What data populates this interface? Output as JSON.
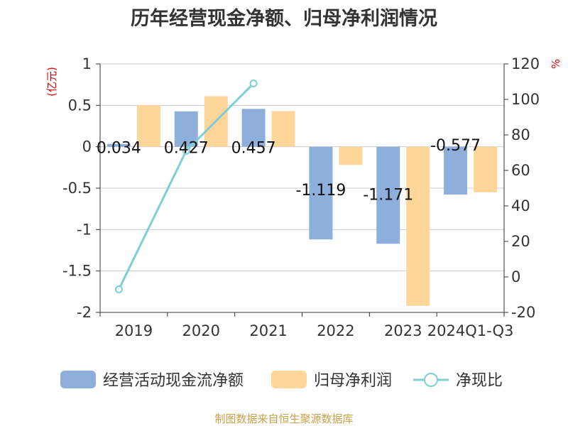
{
  "chart_data": {
    "type": "bar",
    "title": "历年经营现金净额、归母净利润情况",
    "categories": [
      "2019",
      "2020",
      "2021",
      "2022",
      "2023",
      "2024Q1-Q3"
    ],
    "y_left": {
      "unit": "(亿元)",
      "ylim": [
        -2,
        1
      ],
      "ticks": [
        1,
        0.5,
        0,
        -0.5,
        -1,
        -1.5,
        -2
      ],
      "tick_labels": [
        "1",
        "0.5",
        "0",
        "-0.5",
        "-1",
        "-1.5",
        "-2"
      ]
    },
    "y_right": {
      "unit": "%",
      "ylim": [
        -20,
        120
      ],
      "ticks": [
        120,
        100,
        80,
        60,
        40,
        20,
        0,
        -20
      ],
      "tick_labels": [
        "120",
        "100",
        "80",
        "60",
        "40",
        "20",
        "0",
        "-20"
      ]
    },
    "series": [
      {
        "name": "经营活动现金流净额",
        "type": "bar",
        "axis": "left",
        "color": "#8eaedc",
        "values": [
          0.034,
          0.427,
          0.457,
          -1.119,
          -1.171,
          -0.577
        ],
        "labels": [
          "0.034",
          "0.427",
          "0.457",
          "-1.119",
          "-1.171",
          "-0.577"
        ]
      },
      {
        "name": "归母净利润",
        "type": "bar",
        "axis": "left",
        "color": "#ffd699",
        "values": [
          0.5,
          0.61,
          0.43,
          -0.22,
          -1.92,
          -0.55
        ]
      },
      {
        "name": "净现比",
        "type": "line",
        "axis": "right",
        "color": "#7dcfd4",
        "values": [
          -7,
          71,
          109,
          null,
          null,
          null
        ]
      }
    ],
    "grid": true,
    "legend_position": "bottom"
  },
  "legend": {
    "items": [
      {
        "label": "经营活动现金流净额",
        "icon": "bar-swatch",
        "color": "#8eaedc"
      },
      {
        "label": "归母净利润",
        "icon": "bar-swatch",
        "color": "#ffd699"
      },
      {
        "label": "净现比",
        "icon": "line-circle",
        "color": "#7dcfd4"
      }
    ]
  },
  "source": "制图数据来自恒生聚源数据库"
}
